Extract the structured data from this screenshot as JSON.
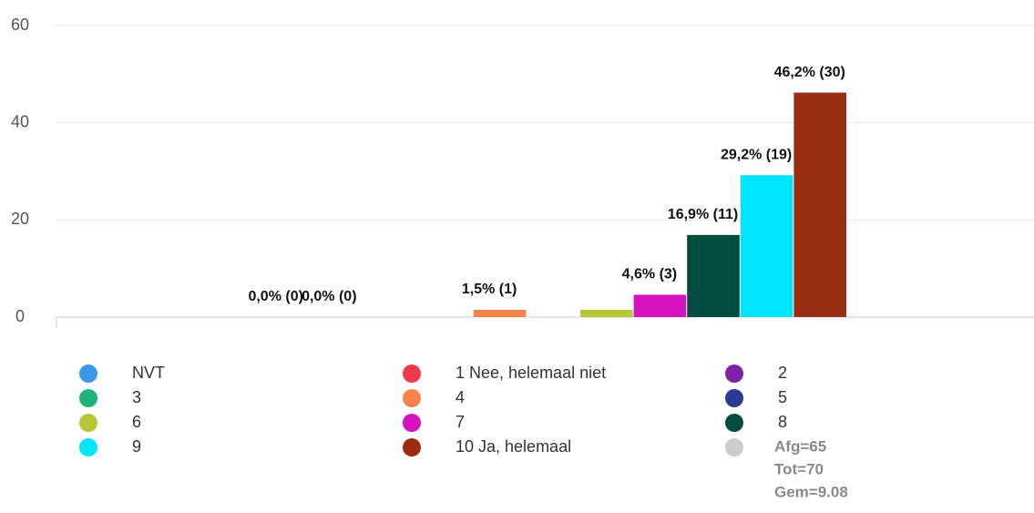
{
  "chart_data": {
    "type": "bar",
    "ylim": [
      0,
      60
    ],
    "yticks": [
      0,
      20,
      40,
      60
    ],
    "grid": true,
    "series": [
      {
        "name": "NVT",
        "color": "#3b98e6",
        "values": [
          0
        ],
        "value_labels": [
          "0,0% (0)"
        ]
      },
      {
        "name": "1 Nee, helemaal niet",
        "color": "#ee3a4d",
        "values": [
          0
        ],
        "value_labels": [
          "0,0% (0)"
        ]
      },
      {
        "name": "2",
        "color": "#7e22a6",
        "values": [
          0
        ],
        "value_labels": [
          null
        ]
      },
      {
        "name": "3",
        "color": "#1db37a",
        "values": [
          0
        ],
        "value_labels": [
          null
        ]
      },
      {
        "name": "4",
        "color": "#f5844a",
        "values": [
          1.5
        ],
        "value_labels": [
          "1,5% (1)"
        ]
      },
      {
        "name": "5",
        "color": "#2c3a94",
        "values": [
          0
        ],
        "value_labels": [
          null
        ]
      },
      {
        "name": "6",
        "color": "#b7c536",
        "values": [
          1.5
        ],
        "value_labels": [
          null
        ]
      },
      {
        "name": "7",
        "color": "#d511c0",
        "values": [
          4.6
        ],
        "value_labels": [
          "4,6% (3)"
        ]
      },
      {
        "name": "8",
        "color": "#004d40",
        "values": [
          16.9
        ],
        "value_labels": [
          "16,9% (11)"
        ]
      },
      {
        "name": "9",
        "color": "#00e5ff",
        "values": [
          29.2
        ],
        "value_labels": [
          "29,2% (19)"
        ]
      },
      {
        "name": "10 Ja, helemaal",
        "color": "#9a2c12",
        "values": [
          46.2
        ],
        "value_labels": [
          "46,2% (30)"
        ]
      }
    ],
    "notes": {
      "color": "#cccccc",
      "lines": [
        "Afg=65",
        "Tot=70",
        "Gem=9.08"
      ]
    }
  }
}
